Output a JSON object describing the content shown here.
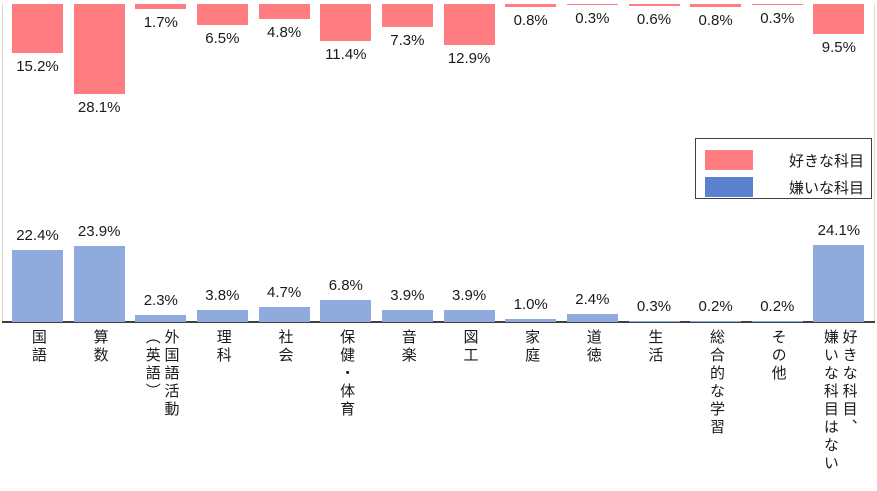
{
  "chart_data": {
    "type": "bar",
    "subtype": "diverging-vertical",
    "title": "",
    "unit": "%",
    "grid": false,
    "legend_position": "middle-right",
    "categories": [
      "国語",
      "算数",
      "外国語活動（英語）",
      "理科",
      "社会",
      "保健・体育",
      "音楽",
      "図工",
      "家庭",
      "道徳",
      "生活",
      "総合的な学習",
      "その他",
      "好きな科目、嫌いな科目はない"
    ],
    "category_lines": [
      [
        "国語"
      ],
      [
        "算数"
      ],
      [
        "外国語活動",
        "（英語）"
      ],
      [
        "理科"
      ],
      [
        "社会"
      ],
      [
        "保健・体育"
      ],
      [
        "音楽"
      ],
      [
        "図工"
      ],
      [
        "家庭"
      ],
      [
        "道徳"
      ],
      [
        "生活"
      ],
      [
        "総合的な学習"
      ],
      [
        "その他"
      ],
      [
        "好きな科目、",
        "嫌いな科目はない"
      ]
    ],
    "series": [
      {
        "name": "好きな科目",
        "color": "#FF7C80",
        "direction": "hanging-from-top",
        "values": [
          15.2,
          28.1,
          1.7,
          6.5,
          4.8,
          11.4,
          7.3,
          12.9,
          0.8,
          0.3,
          0.6,
          0.8,
          0.3,
          9.5
        ],
        "labels": [
          "15.2%",
          "28.1%",
          "1.7%",
          "6.5%",
          "4.8%",
          "11.4%",
          "7.3%",
          "12.9%",
          "0.8%",
          "0.3%",
          "0.6%",
          "0.8%",
          "0.3%",
          "9.5%"
        ]
      },
      {
        "name": "嫌いな科目",
        "color": "#8FAADC",
        "direction": "rising-from-baseline",
        "values": [
          22.4,
          23.9,
          2.3,
          3.8,
          4.7,
          6.8,
          3.9,
          3.9,
          1.0,
          2.4,
          0.3,
          0.2,
          0.2,
          24.1
        ],
        "labels": [
          "22.4%",
          "23.9%",
          "2.3%",
          "3.8%",
          "4.7%",
          "6.8%",
          "3.9%",
          "3.9%",
          "1.0%",
          "2.4%",
          "0.3%",
          "0.2%",
          "0.2%",
          "24.1%"
        ]
      }
    ],
    "legend": {
      "border_color": "#404040",
      "items": [
        {
          "label": "好きな科目",
          "color": "#FF7C80"
        },
        {
          "label": "嫌いな科目",
          "color": "#5B82CE"
        }
      ]
    },
    "colors": {
      "axis_baseline": "#404040",
      "plot_border": "#D9D9D9",
      "label_text": "#1A1A1A"
    }
  }
}
